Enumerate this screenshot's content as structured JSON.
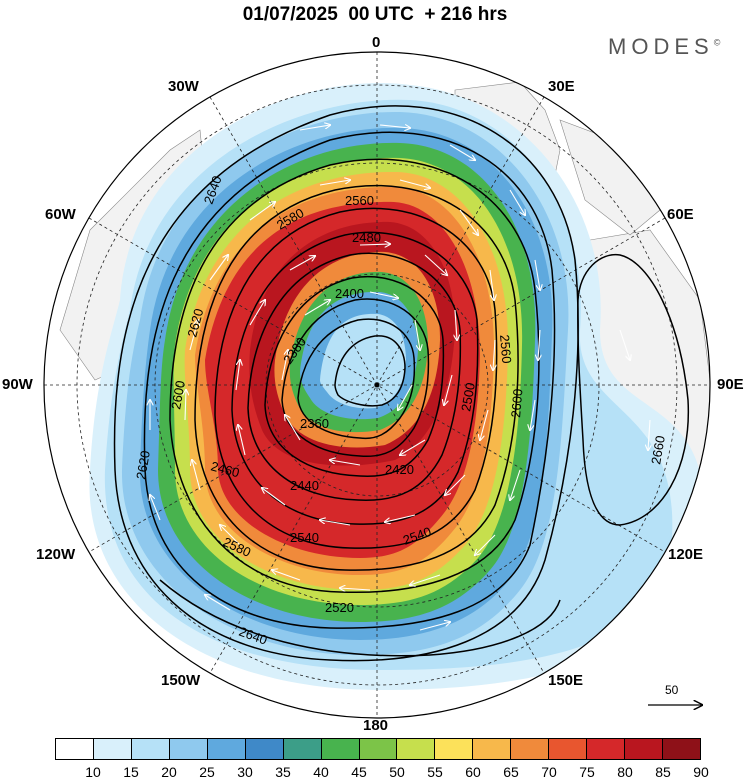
{
  "title": "01/07/2025  00 UTC  + 216 hrs",
  "brand": "MODES",
  "brand_mark": "©",
  "longitude_labels": {
    "north": "0",
    "lon30e": "30E",
    "lon60e": "60E",
    "lon90e": "90E",
    "lon120e": "120E",
    "lon150e": "150E",
    "south": "180",
    "lon150w": "150W",
    "lon120w": "120W",
    "lon90w": "90W",
    "lon60w": "60W",
    "lon30w": "30W"
  },
  "contour_labels": [
    "2640",
    "2620",
    "2600",
    "2580",
    "2560",
    "2480",
    "2400",
    "2380",
    "2360",
    "2420",
    "2440",
    "2460",
    "2540",
    "2520",
    "2500",
    "2660",
    "2640",
    "2620",
    "2600",
    "2580",
    "2560",
    "2540"
  ],
  "wind_reference": "50",
  "colorbar": {
    "ticks": [
      "10",
      "15",
      "20",
      "25",
      "30",
      "35",
      "40",
      "45",
      "50",
      "55",
      "60",
      "65",
      "70",
      "75",
      "80",
      "85",
      "90"
    ],
    "colors": [
      "#ffffff",
      "#d9f0fb",
      "#b6e1f7",
      "#8fc9ee",
      "#5fa9de",
      "#3f89c8",
      "#3c9e88",
      "#48b34e",
      "#7cc448",
      "#c6df4d",
      "#fce15a",
      "#f7b84b",
      "#f08a3b",
      "#e8562f",
      "#d5282a",
      "#b9161f",
      "#8e1118"
    ]
  }
}
